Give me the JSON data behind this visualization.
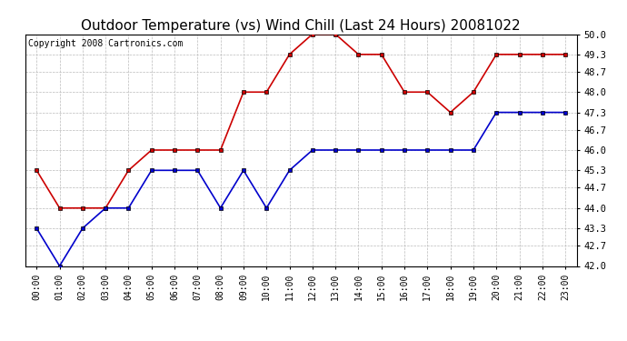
{
  "title": "Outdoor Temperature (vs) Wind Chill (Last 24 Hours) 20081022",
  "copyright": "Copyright 2008 Cartronics.com",
  "x_labels": [
    "00:00",
    "01:00",
    "02:00",
    "03:00",
    "04:00",
    "05:00",
    "06:00",
    "07:00",
    "08:00",
    "09:00",
    "10:00",
    "11:00",
    "12:00",
    "13:00",
    "14:00",
    "15:00",
    "16:00",
    "17:00",
    "18:00",
    "19:00",
    "20:00",
    "21:00",
    "22:00",
    "23:00"
  ],
  "temp_red": [
    45.3,
    44.0,
    44.0,
    44.0,
    45.3,
    46.0,
    46.0,
    46.0,
    46.0,
    48.0,
    48.0,
    49.3,
    50.0,
    50.0,
    49.3,
    49.3,
    48.0,
    48.0,
    47.3,
    48.0,
    49.3,
    49.3,
    49.3,
    49.3
  ],
  "temp_blue": [
    43.3,
    42.0,
    43.3,
    44.0,
    44.0,
    45.3,
    45.3,
    45.3,
    44.0,
    45.3,
    44.0,
    45.3,
    46.0,
    46.0,
    46.0,
    46.0,
    46.0,
    46.0,
    46.0,
    46.0,
    47.3,
    47.3,
    47.3,
    47.3
  ],
  "ylim": [
    42.0,
    50.0
  ],
  "yticks": [
    42.0,
    42.7,
    43.3,
    44.0,
    44.7,
    45.3,
    46.0,
    46.7,
    47.3,
    48.0,
    48.7,
    49.3,
    50.0
  ],
  "bg_color": "#ffffff",
  "plot_bg_color": "#ffffff",
  "grid_color": "#bbbbbb",
  "red_color": "#cc0000",
  "blue_color": "#0000cc",
  "title_fontsize": 11,
  "copyright_fontsize": 7,
  "tick_fontsize": 7,
  "ytick_fontsize": 7.5
}
